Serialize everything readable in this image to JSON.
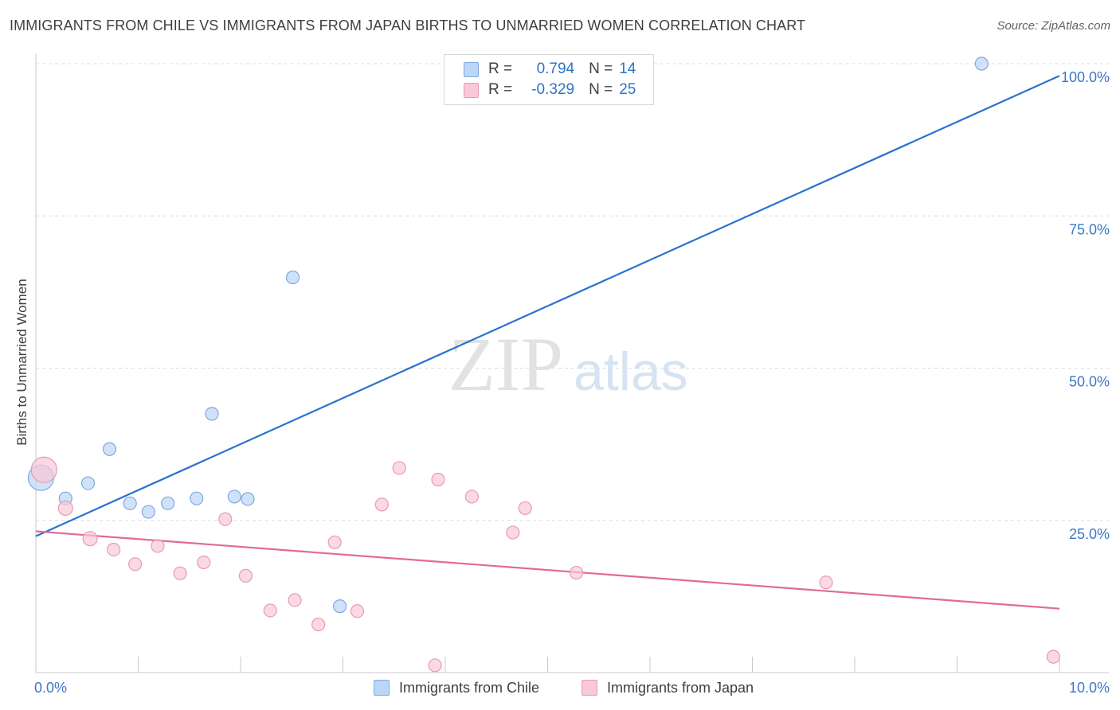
{
  "title": "IMMIGRANTS FROM CHILE VS IMMIGRANTS FROM JAPAN BIRTHS TO UNMARRIED WOMEN CORRELATION CHART",
  "source": "Source: ZipAtlas.com",
  "watermark": {
    "zip": "ZIP",
    "atlas": "atlas"
  },
  "colors": {
    "chile_fill": "#bcd6f7",
    "chile_stroke": "#7fa8e0",
    "chile_line": "#2a72cf",
    "japan_fill": "#f8c9d7",
    "japan_stroke": "#e99ab2",
    "japan_line": "#e36a93",
    "axis_label": "#3b78c9",
    "grid": "#dadce0"
  },
  "legend": {
    "rows": [
      {
        "r_label": "R =",
        "r_value": "0.794",
        "n_label": "N =",
        "n_value": "14"
      },
      {
        "r_label": "R =",
        "r_value": "-0.329",
        "n_label": "N =",
        "n_value": "25"
      }
    ]
  },
  "bottom_legend": [
    "Immigrants from Chile",
    "Immigrants from Japan"
  ],
  "chart_data": {
    "type": "scatter",
    "title": "IMMIGRANTS FROM CHILE VS IMMIGRANTS FROM JAPAN BIRTHS TO UNMARRIED WOMEN CORRELATION CHART",
    "xlabel": "",
    "ylabel": "Births to Unmarried Women",
    "xlim": [
      0,
      10
    ],
    "ylim": [
      0,
      100
    ],
    "x_tick_labels": [
      "0.0%",
      "10.0%"
    ],
    "y_tick_values": [
      25,
      50,
      75,
      100
    ],
    "y_tick_labels": [
      "25.0%",
      "50.0%",
      "75.0%",
      "100.0%"
    ],
    "grid": true,
    "legend_position": "top-center",
    "series": [
      {
        "name": "Immigrants from Chile",
        "color": "#2a72cf",
        "points": [
          {
            "x": 0.05,
            "y": 32.0,
            "size": 16
          },
          {
            "x": 0.29,
            "y": 28.6,
            "size": 8
          },
          {
            "x": 0.51,
            "y": 31.1,
            "size": 8
          },
          {
            "x": 0.72,
            "y": 36.7,
            "size": 8
          },
          {
            "x": 0.92,
            "y": 27.8,
            "size": 8
          },
          {
            "x": 1.1,
            "y": 26.4,
            "size": 8
          },
          {
            "x": 1.29,
            "y": 27.8,
            "size": 8
          },
          {
            "x": 1.57,
            "y": 28.6,
            "size": 8
          },
          {
            "x": 1.72,
            "y": 42.5,
            "size": 8
          },
          {
            "x": 1.94,
            "y": 28.9,
            "size": 8
          },
          {
            "x": 2.07,
            "y": 28.5,
            "size": 8
          },
          {
            "x": 2.51,
            "y": 64.9,
            "size": 8
          },
          {
            "x": 2.97,
            "y": 10.9,
            "size": 8
          },
          {
            "x": 9.24,
            "y": 100.0,
            "size": 8
          }
        ],
        "trend": {
          "x": [
            0.0,
            10.0
          ],
          "y": [
            22.4,
            98.0
          ]
        }
      },
      {
        "name": "Immigrants from Japan",
        "color": "#e36a93",
        "points": [
          {
            "x": 0.08,
            "y": 33.3,
            "size": 16
          },
          {
            "x": 0.29,
            "y": 27.0,
            "size": 9
          },
          {
            "x": 0.53,
            "y": 22.0,
            "size": 9
          },
          {
            "x": 0.76,
            "y": 20.2,
            "size": 8
          },
          {
            "x": 0.97,
            "y": 17.8,
            "size": 8
          },
          {
            "x": 1.19,
            "y": 20.8,
            "size": 8
          },
          {
            "x": 1.41,
            "y": 16.3,
            "size": 8
          },
          {
            "x": 1.64,
            "y": 18.1,
            "size": 8
          },
          {
            "x": 1.85,
            "y": 25.2,
            "size": 8
          },
          {
            "x": 2.05,
            "y": 15.9,
            "size": 8
          },
          {
            "x": 2.29,
            "y": 10.2,
            "size": 8
          },
          {
            "x": 2.53,
            "y": 11.9,
            "size": 8
          },
          {
            "x": 2.76,
            "y": 7.9,
            "size": 8
          },
          {
            "x": 2.92,
            "y": 21.4,
            "size": 8
          },
          {
            "x": 3.14,
            "y": 10.1,
            "size": 8
          },
          {
            "x": 3.38,
            "y": 27.6,
            "size": 8
          },
          {
            "x": 3.55,
            "y": 33.6,
            "size": 8
          },
          {
            "x": 3.9,
            "y": 1.2,
            "size": 8
          },
          {
            "x": 3.93,
            "y": 31.7,
            "size": 8
          },
          {
            "x": 4.26,
            "y": 28.9,
            "size": 8
          },
          {
            "x": 4.66,
            "y": 23.0,
            "size": 8
          },
          {
            "x": 4.78,
            "y": 27.0,
            "size": 8
          },
          {
            "x": 5.28,
            "y": 16.4,
            "size": 8
          },
          {
            "x": 7.72,
            "y": 14.8,
            "size": 8
          },
          {
            "x": 9.94,
            "y": 2.6,
            "size": 8
          }
        ],
        "trend": {
          "x": [
            0.0,
            10.0
          ],
          "y": [
            23.2,
            10.5
          ]
        }
      }
    ]
  }
}
